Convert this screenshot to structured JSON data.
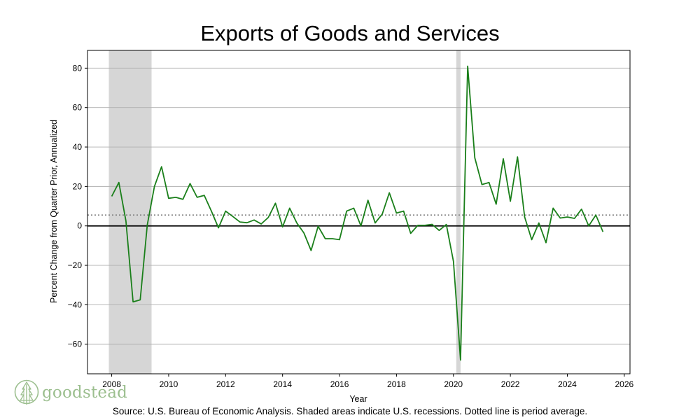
{
  "chart_data": {
    "type": "line",
    "title": "Exports of Goods and Services",
    "xlabel": "Year",
    "ylabel": "Percent Change from Quarter Prior, Annualized",
    "xlim": [
      2007.15,
      2026.2
    ],
    "ylim": [
      -75,
      89
    ],
    "xticks": [
      2008,
      2010,
      2012,
      2014,
      2016,
      2018,
      2020,
      2022,
      2024,
      2026
    ],
    "xtick_labels": [
      "2008",
      "2010",
      "2012",
      "2014",
      "2016",
      "2018",
      "2020",
      "2022",
      "2024",
      "2026"
    ],
    "yticks": [
      80,
      60,
      40,
      20,
      0,
      -20,
      -40,
      -60
    ],
    "ytick_labels": [
      "80",
      "60",
      "40",
      "20",
      "0",
      "−20",
      "−40",
      "−60"
    ],
    "grid": "horizontal",
    "line_color": "#1a7f1a",
    "average_value": 5.5,
    "recessions": [
      {
        "start": 2007.9,
        "end": 2009.4
      },
      {
        "start": 2020.1,
        "end": 2020.25
      }
    ],
    "series": [
      {
        "name": "Exports of Goods and Services",
        "x": [
          2008.0,
          2008.25,
          2008.5,
          2008.75,
          2009.0,
          2009.25,
          2009.5,
          2009.75,
          2010.0,
          2010.25,
          2010.5,
          2010.75,
          2011.0,
          2011.25,
          2011.5,
          2011.75,
          2012.0,
          2012.25,
          2012.5,
          2012.75,
          2013.0,
          2013.25,
          2013.5,
          2013.75,
          2014.0,
          2014.25,
          2014.5,
          2014.75,
          2015.0,
          2015.25,
          2015.5,
          2015.75,
          2016.0,
          2016.25,
          2016.5,
          2016.75,
          2017.0,
          2017.25,
          2017.5,
          2017.75,
          2018.0,
          2018.25,
          2018.5,
          2018.75,
          2019.0,
          2019.25,
          2019.5,
          2019.75,
          2020.0,
          2020.25,
          2020.5,
          2020.75,
          2021.0,
          2021.25,
          2021.5,
          2021.75,
          2022.0,
          2022.25,
          2022.5,
          2022.75,
          2023.0,
          2023.25,
          2023.5,
          2023.75,
          2024.0,
          2024.25,
          2024.5,
          2024.75,
          2025.0,
          2025.25
        ],
        "values": [
          15,
          22,
          2.5,
          -38.5,
          -37.5,
          0.5,
          20,
          30,
          14,
          14.5,
          13.5,
          21.5,
          14.5,
          15.5,
          7.5,
          -1,
          7.5,
          4.8,
          2,
          1.6,
          3,
          1,
          4.3,
          11.5,
          -0.5,
          9,
          1.5,
          -3.6,
          -12.5,
          -0.2,
          -6.5,
          -6.5,
          -7,
          7.5,
          9,
          0,
          13,
          1.5,
          6,
          16.8,
          6.5,
          7.5,
          -3.8,
          0.3,
          0.3,
          0.8,
          -2.3,
          0.7,
          -18,
          -68,
          81,
          34.5,
          21,
          22,
          11,
          34,
          12.5,
          35,
          4.5,
          -7,
          1.5,
          -8.5,
          9,
          4,
          4.5,
          3.8,
          8.5,
          0,
          5.5,
          -3
        ]
      }
    ],
    "source_note": "Source: U.S. Bureau of Economic Analysis. Shaded areas indicate U.S. recessions. Dotted line is period average.",
    "brand": "goodstead"
  }
}
